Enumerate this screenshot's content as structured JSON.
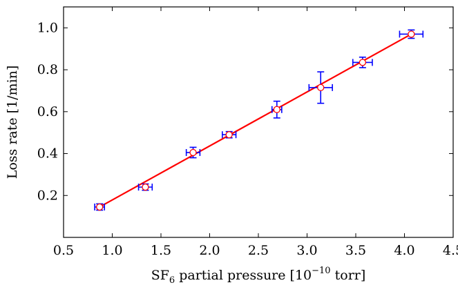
{
  "chart_data": {
    "type": "scatter",
    "title": "",
    "xlabel": {
      "main": "SF",
      "sub": "6",
      "mid": " partial pressure [10",
      "sup": "−10",
      "end": " torr]"
    },
    "ylabel": "Loss rate [1/min]",
    "xlim": [
      0.5,
      4.5
    ],
    "ylim": [
      0.0,
      1.1
    ],
    "xticks": [
      "0.5",
      "1.0",
      "1.5",
      "2.0",
      "2.5",
      "3.0",
      "3.5",
      "4.0",
      "4.5"
    ],
    "yticks": [
      "0.2",
      "0.4",
      "0.6",
      "0.8",
      "1.0"
    ],
    "grid": false,
    "series": [
      {
        "kind": "points-with-errorbars",
        "color": "#0000ff",
        "marker_edge": "#ff0000",
        "points": [
          {
            "x": 0.87,
            "y": 0.145,
            "xerr": 0.05,
            "yerr": 0.015
          },
          {
            "x": 1.34,
            "y": 0.24,
            "xerr": 0.07,
            "yerr": 0.015
          },
          {
            "x": 1.83,
            "y": 0.405,
            "xerr": 0.07,
            "yerr": 0.025
          },
          {
            "x": 2.2,
            "y": 0.49,
            "xerr": 0.07,
            "yerr": 0.015
          },
          {
            "x": 2.69,
            "y": 0.61,
            "xerr": 0.05,
            "yerr": 0.04
          },
          {
            "x": 3.14,
            "y": 0.715,
            "xerr": 0.12,
            "yerr": 0.075
          },
          {
            "x": 3.57,
            "y": 0.835,
            "xerr": 0.1,
            "yerr": 0.025
          },
          {
            "x": 4.07,
            "y": 0.97,
            "xerr": 0.12,
            "yerr": 0.02
          }
        ]
      },
      {
        "kind": "fit-line",
        "color": "#ff0000",
        "x": [
          0.87,
          4.07
        ],
        "y": [
          0.145,
          0.97
        ]
      }
    ]
  }
}
